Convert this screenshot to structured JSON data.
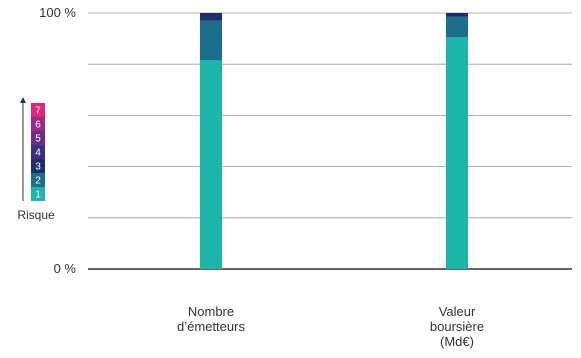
{
  "chart_data": {
    "type": "bar",
    "stacked": true,
    "categories": [
      "Nombre\nd’émetteurs",
      "Valeur\nboursière\n(Md€)"
    ],
    "series": [
      {
        "name": "1",
        "color": "#1BB5A9",
        "values": [
          81.5,
          90.5
        ]
      },
      {
        "name": "2",
        "color": "#1A6F8C",
        "values": [
          15.5,
          8
        ]
      },
      {
        "name": "3",
        "color": "#1D2E6E",
        "values": [
          3,
          1.5
        ]
      },
      {
        "name": "4",
        "color": "#3D2F7F",
        "values": [
          0,
          0
        ]
      },
      {
        "name": "5",
        "color": "#6A2C86",
        "values": [
          0,
          0
        ]
      },
      {
        "name": "6",
        "color": "#9B2A86",
        "values": [
          0,
          0
        ]
      },
      {
        "name": "7",
        "color": "#E2257B",
        "values": [
          0,
          0
        ]
      }
    ],
    "ylim": [
      0,
      100
    ],
    "yticks": [
      {
        "value": 0,
        "label": "0 %"
      },
      {
        "value": 100,
        "label": "100 %"
      }
    ],
    "grid": true,
    "legend": {
      "title": "Risque",
      "placement": "left",
      "direction": "arrow-up"
    }
  }
}
